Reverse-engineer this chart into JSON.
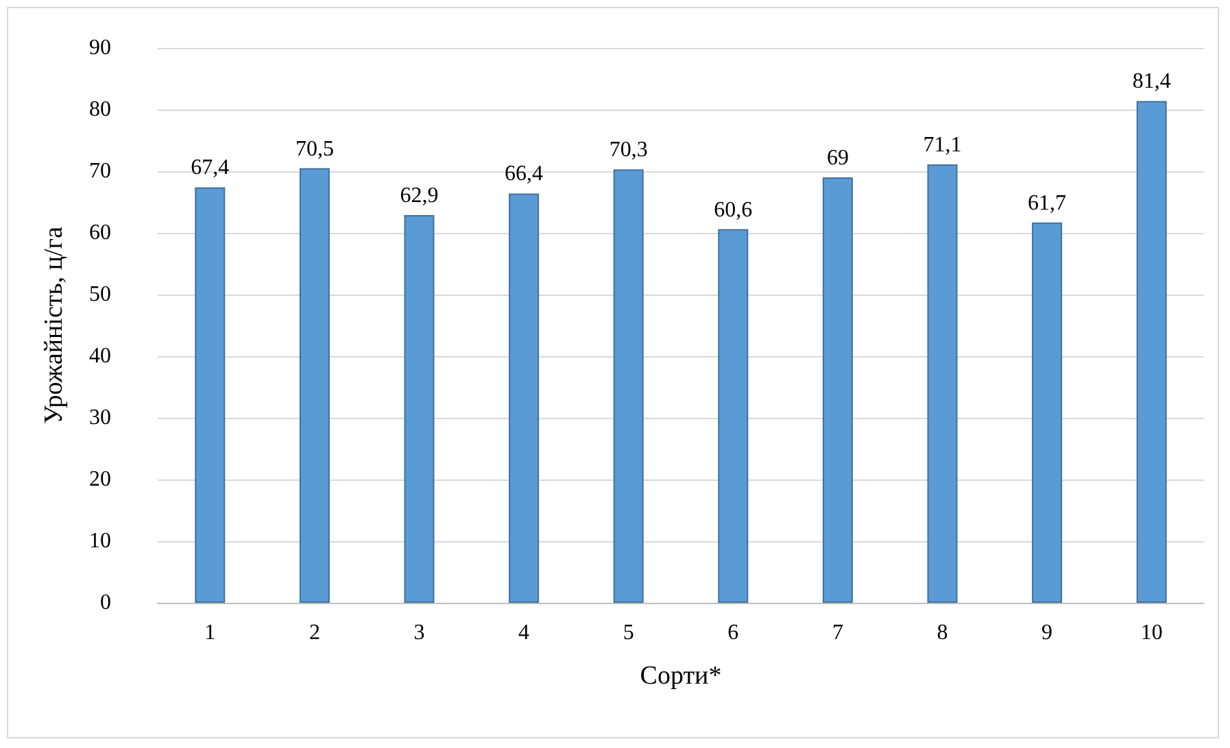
{
  "chart_data": {
    "type": "bar",
    "xlabel": "Сорти*",
    "ylabel": "Урожайність, ц/га",
    "categories": [
      "1",
      "2",
      "3",
      "4",
      "5",
      "6",
      "7",
      "8",
      "9",
      "10"
    ],
    "values": [
      67.4,
      70.5,
      62.9,
      66.4,
      70.3,
      60.6,
      69,
      71.1,
      61.7,
      81.4
    ],
    "value_labels": [
      "67,4",
      "70,5",
      "62,9",
      "66,4",
      "70,3",
      "60,6",
      "69",
      "71,1",
      "61,7",
      "81,4"
    ],
    "color": "#5b9bd5",
    "ylim": [
      0,
      90
    ],
    "yticks": [
      0,
      10,
      20,
      30,
      40,
      50,
      60,
      70,
      80,
      90
    ],
    "grid": "y"
  }
}
